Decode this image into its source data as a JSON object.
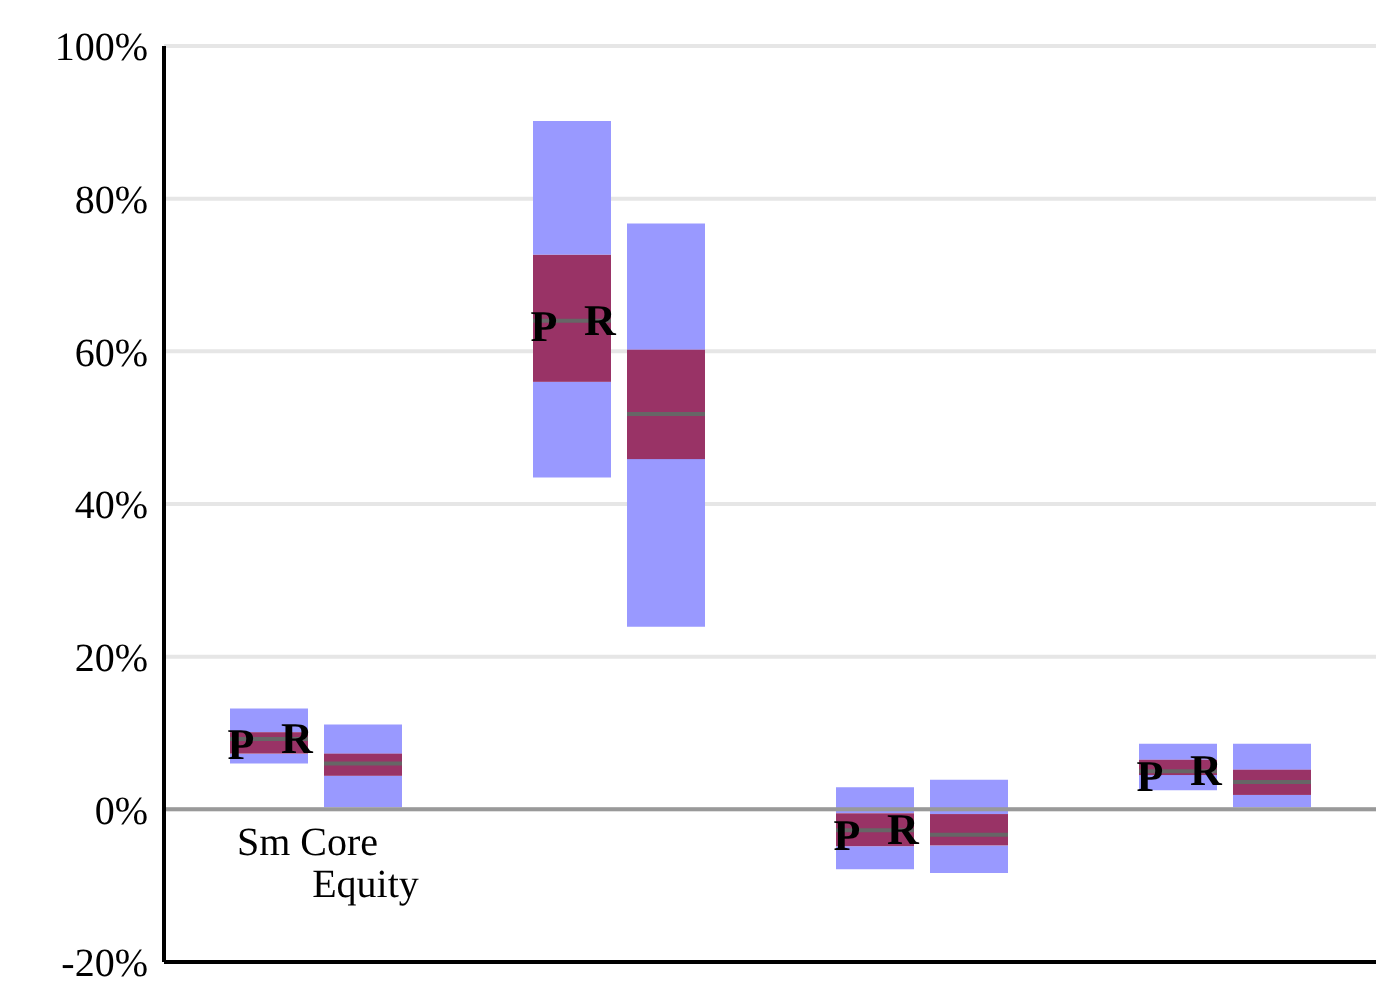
{
  "chart_data": {
    "type": "box",
    "categories": [
      "Sm Core Equity",
      null,
      null,
      null
    ],
    "series": [
      {
        "name": "P",
        "color": "#993366",
        "boxes": [
          {
            "low": 6.2,
            "q1": 7.5,
            "median": 9.4,
            "q3": 10.3,
            "high": 13.4
          },
          {
            "low": 43.6,
            "q1": 56.1,
            "median": 64.1,
            "q3": 72.7,
            "high": 90.2
          },
          {
            "low": -7.6,
            "q1": -4.6,
            "median": -2.5,
            "q3": -0.3,
            "high": 3.1
          },
          {
            "low": 2.7,
            "q1": 4.7,
            "median": 5.2,
            "q3": 6.7,
            "high": 8.8
          }
        ]
      },
      {
        "name": "R",
        "color": "#993366",
        "boxes": [
          {
            "low": 0.5,
            "q1": 4.6,
            "median": 6.2,
            "q3": 7.5,
            "high": 11.3
          },
          {
            "low": 24.1,
            "q1": 46.0,
            "median": 51.9,
            "q3": 60.3,
            "high": 76.8
          },
          {
            "low": -8.1,
            "q1": -4.5,
            "median": -3.1,
            "q3": -0.4,
            "high": 4.1
          },
          {
            "low": 0.5,
            "q1": 2.1,
            "median": 3.8,
            "q3": 5.4,
            "high": 8.8
          }
        ]
      }
    ],
    "ylim": [
      -20,
      100
    ],
    "yticks": [
      {
        "value": -20,
        "label": "-20%"
      },
      {
        "value": 0,
        "label": "0%"
      },
      {
        "value": 20,
        "label": "20%"
      },
      {
        "value": 40,
        "label": "40%"
      },
      {
        "value": 60,
        "label": "60%"
      },
      {
        "value": 80,
        "label": "80%"
      },
      {
        "value": 100,
        "label": "100%"
      }
    ],
    "grid": "y"
  }
}
